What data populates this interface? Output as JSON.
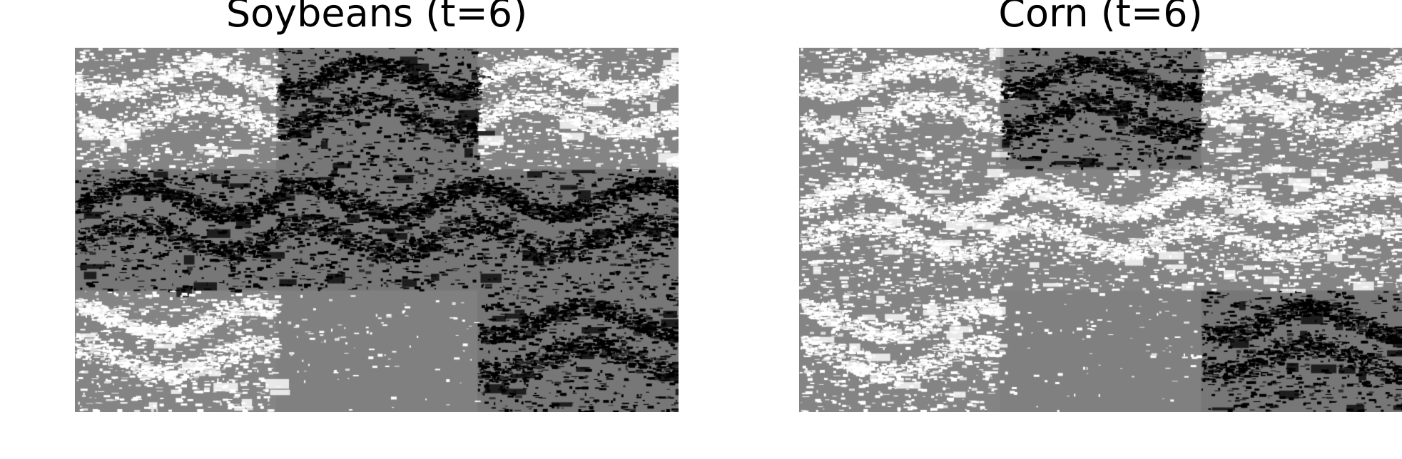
{
  "chart_data": [
    {
      "type": "heatmap",
      "title": "Soybeans (t=6)",
      "colormap": "gray",
      "background": "#808080",
      "grid": false,
      "legend": "none",
      "tiles": {
        "rows": 3,
        "cols": 3,
        "pattern": [
          [
            "light",
            "dark",
            "light"
          ],
          [
            "dark",
            "dark",
            "dark"
          ],
          [
            "light",
            "flat",
            "dark"
          ]
        ]
      }
    },
    {
      "type": "heatmap",
      "title": "Corn (t=6)",
      "colormap": "gray",
      "background": "#808080",
      "grid": false,
      "legend": "none",
      "tiles": {
        "rows": 3,
        "cols": 3,
        "pattern": [
          [
            "light",
            "dark",
            "light"
          ],
          [
            "light",
            "light",
            "light"
          ],
          [
            "light",
            "flat",
            "dark"
          ]
        ]
      }
    }
  ]
}
